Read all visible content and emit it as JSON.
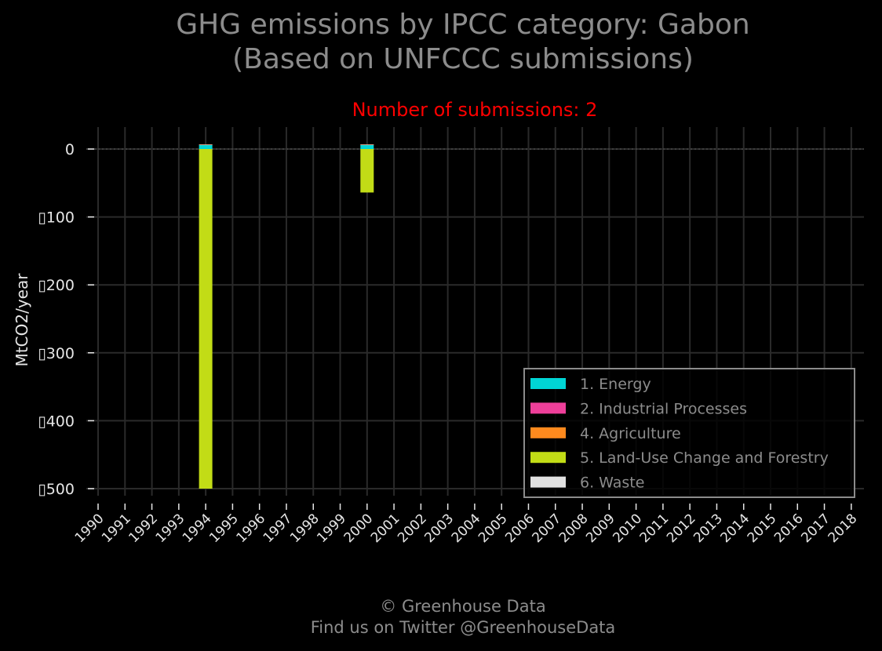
{
  "title_line1": "GHG emissions by IPCC category: Gabon",
  "title_line2": "(Based on UNFCCC submissions)",
  "footer_line1": "© Greenhouse Data",
  "footer_line2": "Find us on Twitter @GreenhouseData",
  "colors": {
    "background": "#000000",
    "grid": "#2a2a2a",
    "axis_text": "#e6e6e6",
    "subtitle": "#ff0000",
    "legend_text": "#8c8c8c",
    "legend_border": "#8c8c8c"
  },
  "chart_data": {
    "type": "bar",
    "stacked": true,
    "subtitle": "Number of submissions: 2",
    "xlabel": "",
    "ylabel": "MtCO2/year",
    "categories": [
      "1990",
      "1991",
      "1992",
      "1993",
      "1994",
      "1995",
      "1996",
      "1997",
      "1998",
      "1999",
      "2000",
      "2001",
      "2002",
      "2003",
      "2004",
      "2005",
      "2006",
      "2007",
      "2008",
      "2009",
      "2010",
      "2011",
      "2012",
      "2013",
      "2014",
      "2015",
      "2016",
      "2017",
      "2018"
    ],
    "ylim": [
      -510,
      32
    ],
    "yticks": [
      0,
      -100,
      -200,
      -300,
      -400,
      -500
    ],
    "ytick_labels": [
      "0",
      "▯100",
      "▯200",
      "▯300",
      "▯400",
      "▯500"
    ],
    "grid": true,
    "legend_position": "bottom-right",
    "series": [
      {
        "name": "1. Energy",
        "color": "#00d5d5",
        "values": [
          null,
          null,
          null,
          null,
          6,
          null,
          null,
          null,
          null,
          null,
          6,
          null,
          null,
          null,
          null,
          null,
          null,
          null,
          null,
          null,
          null,
          null,
          null,
          null,
          null,
          null,
          null,
          null,
          null
        ]
      },
      {
        "name": "2. Industrial Processes",
        "color": "#ee3f9a",
        "values": [
          null,
          null,
          null,
          null,
          0.3,
          null,
          null,
          null,
          null,
          null,
          0.3,
          null,
          null,
          null,
          null,
          null,
          null,
          null,
          null,
          null,
          null,
          null,
          null,
          null,
          null,
          null,
          null,
          null,
          null
        ]
      },
      {
        "name": "4. Agriculture",
        "color": "#ff8a1e",
        "values": [
          null,
          null,
          null,
          null,
          0.2,
          null,
          null,
          null,
          null,
          null,
          0.2,
          null,
          null,
          null,
          null,
          null,
          null,
          null,
          null,
          null,
          null,
          null,
          null,
          null,
          null,
          null,
          null,
          null,
          null
        ]
      },
      {
        "name": "5. Land-Use Change and Forestry",
        "color": "#c2dc16",
        "values": [
          null,
          null,
          null,
          null,
          -500,
          null,
          null,
          null,
          null,
          null,
          -64,
          null,
          null,
          null,
          null,
          null,
          null,
          null,
          null,
          null,
          null,
          null,
          null,
          null,
          null,
          null,
          null,
          null,
          null
        ]
      },
      {
        "name": "6. Waste",
        "color": "#e1e1e1",
        "values": [
          null,
          null,
          null,
          null,
          0.3,
          null,
          null,
          null,
          null,
          null,
          0.3,
          null,
          null,
          null,
          null,
          null,
          null,
          null,
          null,
          null,
          null,
          null,
          null,
          null,
          null,
          null,
          null,
          null,
          null
        ]
      }
    ]
  }
}
